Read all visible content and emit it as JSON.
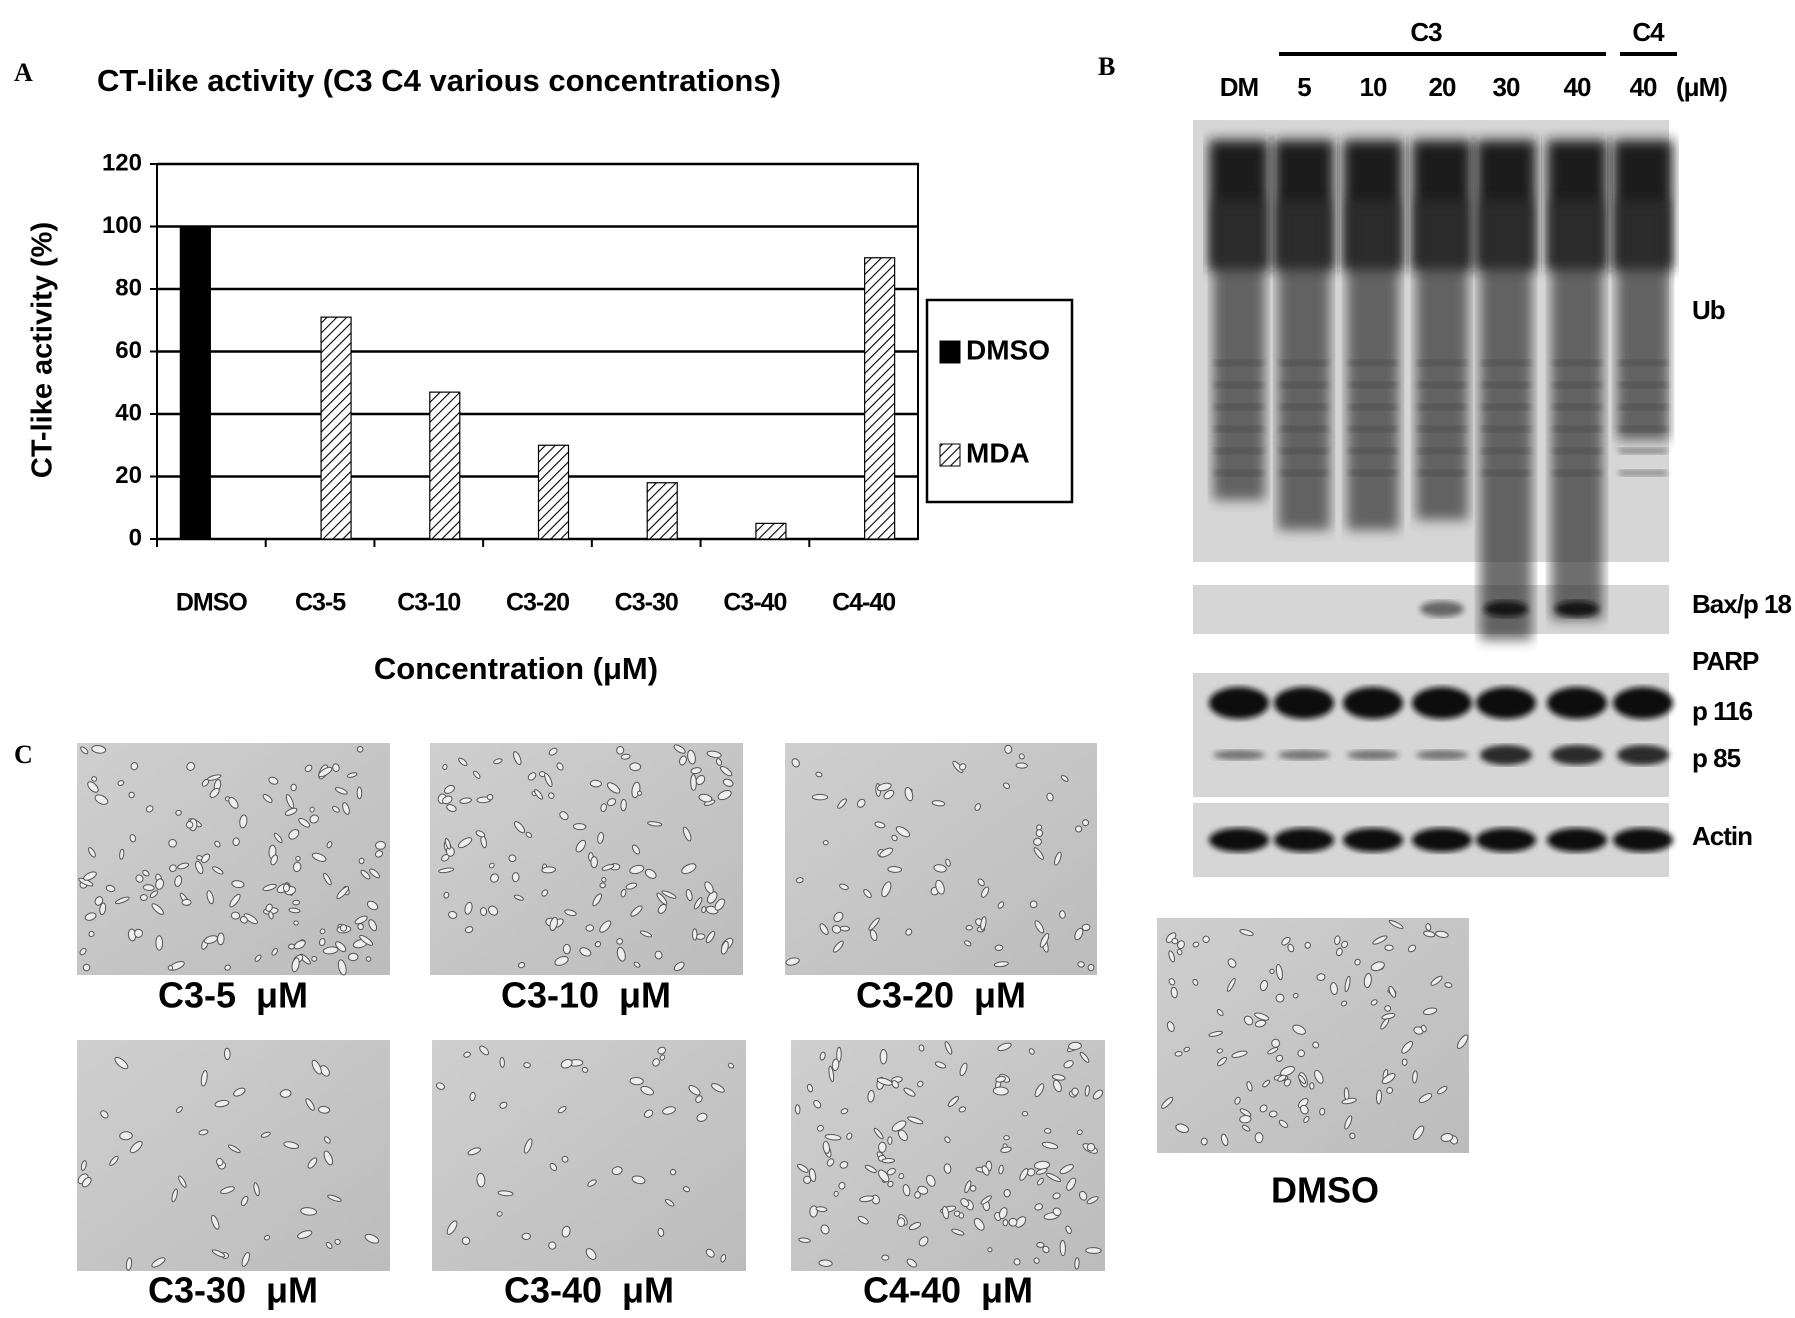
{
  "panel_labels": [
    "A",
    "B",
    "C"
  ],
  "chart_data": {
    "type": "bar",
    "title": "CT-like activity (C3 C4 various concentrations)",
    "x_label": "Concentration (μM)",
    "y_label": "CT-like activity (%)",
    "categories": [
      "DMSO",
      "C3-5",
      "C3-10",
      "C3-20",
      "C3-30",
      "C3-40",
      "C4-40"
    ],
    "series": [
      {
        "name": "DMSO",
        "color": "#000000",
        "values": [
          100,
          null,
          null,
          null,
          null,
          null,
          null
        ]
      },
      {
        "name": "MDA",
        "color": "hatch",
        "values": [
          null,
          71,
          47,
          30,
          18,
          5,
          90
        ]
      }
    ],
    "ylim": [
      0,
      120
    ],
    "yticks": [
      0,
      20,
      40,
      60,
      80,
      100,
      120
    ],
    "grid": true,
    "legend": "right"
  },
  "blot": {
    "group_labels": [
      "C3",
      "C4"
    ],
    "lanes": [
      "DM",
      "5",
      "10",
      "20",
      "30",
      "40",
      "40"
    ],
    "unit": "(μM)",
    "rows": [
      "Ub",
      "Bax/p 18",
      "PARP",
      "p 116",
      "p 85",
      "Actin"
    ]
  },
  "micrographs": [
    "C3-5  μM",
    "C3-10  μM",
    "C3-20  μM",
    "C3-30  μM",
    "C3-40  μM",
    "C4-40  μM",
    "DMSO"
  ]
}
